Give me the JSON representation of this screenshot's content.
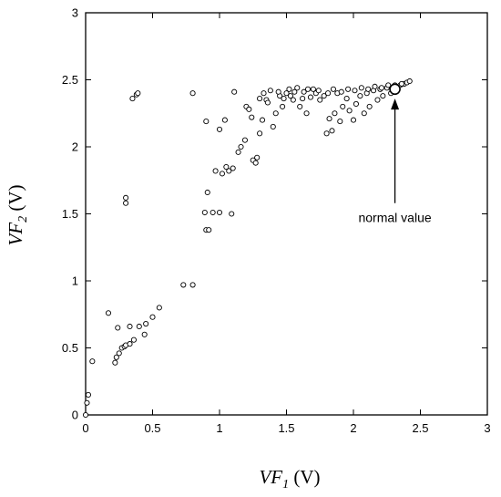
{
  "chart_data": {
    "type": "scatter",
    "title": "",
    "xlabel": {
      "main": "VF",
      "sub": "1",
      "unit": " (V)"
    },
    "ylabel": {
      "main": "VF",
      "sub": "2",
      "unit": " (V)"
    },
    "xlim": [
      0,
      3
    ],
    "ylim": [
      0,
      3
    ],
    "xticks": [
      0,
      0.5,
      1,
      1.5,
      2,
      2.5,
      3
    ],
    "yticks": [
      0,
      0.5,
      1,
      1.5,
      2,
      2.5,
      3
    ],
    "xtick_labels": [
      "0",
      "0.5",
      "1",
      "1.5",
      "2",
      "2.5",
      "3"
    ],
    "ytick_labels": [
      "0",
      "0.5",
      "1",
      "1.5",
      "2",
      "2.5",
      "3"
    ],
    "grid": false,
    "legend": "none",
    "marker": "open-circle",
    "series": [
      {
        "values": [
          [
            0.0,
            0.0
          ],
          [
            0.01,
            0.09
          ],
          [
            0.02,
            0.15
          ],
          [
            0.05,
            0.4
          ],
          [
            0.17,
            0.76
          ],
          [
            0.22,
            0.39
          ],
          [
            0.23,
            0.43
          ],
          [
            0.24,
            0.65
          ],
          [
            0.25,
            0.46
          ],
          [
            0.27,
            0.5
          ],
          [
            0.29,
            0.51
          ],
          [
            0.3,
            0.52
          ],
          [
            0.33,
            0.53
          ],
          [
            0.33,
            0.66
          ],
          [
            0.36,
            0.56
          ],
          [
            0.4,
            0.66
          ],
          [
            0.44,
            0.6
          ],
          [
            0.45,
            0.68
          ],
          [
            0.5,
            0.73
          ],
          [
            0.55,
            0.8
          ],
          [
            0.73,
            0.97
          ],
          [
            0.8,
            0.97
          ],
          [
            0.3,
            1.58
          ],
          [
            0.3,
            1.62
          ],
          [
            0.35,
            2.36
          ],
          [
            0.38,
            2.39
          ],
          [
            0.39,
            2.4
          ],
          [
            0.8,
            2.4
          ],
          [
            0.9,
            1.38
          ],
          [
            0.92,
            1.38
          ],
          [
            0.89,
            1.51
          ],
          [
            0.95,
            1.51
          ],
          [
            1.0,
            1.51
          ],
          [
            1.09,
            1.5
          ],
          [
            0.91,
            1.66
          ],
          [
            0.9,
            2.19
          ],
          [
            0.97,
            1.82
          ],
          [
            1.0,
            2.13
          ],
          [
            1.02,
            1.8
          ],
          [
            1.05,
            1.85
          ],
          [
            1.07,
            1.82
          ],
          [
            1.1,
            1.84
          ],
          [
            1.04,
            2.2
          ],
          [
            1.11,
            2.41
          ],
          [
            1.14,
            1.96
          ],
          [
            1.16,
            2.0
          ],
          [
            1.19,
            2.05
          ],
          [
            1.2,
            2.3
          ],
          [
            1.22,
            2.28
          ],
          [
            1.24,
            2.22
          ],
          [
            1.25,
            1.9
          ],
          [
            1.27,
            1.88
          ],
          [
            1.28,
            1.92
          ],
          [
            1.3,
            2.1
          ],
          [
            1.32,
            2.2
          ],
          [
            1.35,
            2.35
          ],
          [
            1.38,
            2.42
          ],
          [
            1.4,
            2.15
          ],
          [
            1.42,
            2.25
          ],
          [
            1.45,
            2.38
          ],
          [
            1.47,
            2.3
          ],
          [
            1.5,
            2.4
          ],
          [
            1.52,
            2.43
          ],
          [
            1.55,
            2.35
          ],
          [
            1.58,
            2.44
          ],
          [
            1.6,
            2.3
          ],
          [
            1.63,
            2.41
          ],
          [
            1.65,
            2.25
          ],
          [
            1.68,
            2.37
          ],
          [
            1.7,
            2.43
          ],
          [
            1.72,
            2.4
          ],
          [
            1.75,
            2.35
          ],
          [
            1.78,
            2.38
          ],
          [
            1.8,
            2.1
          ],
          [
            1.82,
            2.21
          ],
          [
            1.84,
            2.12
          ],
          [
            1.86,
            2.25
          ],
          [
            1.88,
            2.4
          ],
          [
            1.9,
            2.19
          ],
          [
            1.92,
            2.3
          ],
          [
            1.95,
            2.36
          ],
          [
            1.97,
            2.27
          ],
          [
            2.0,
            2.2
          ],
          [
            2.02,
            2.32
          ],
          [
            2.05,
            2.38
          ],
          [
            2.08,
            2.25
          ],
          [
            2.1,
            2.4
          ],
          [
            2.12,
            2.3
          ],
          [
            2.15,
            2.42
          ],
          [
            2.18,
            2.35
          ],
          [
            2.2,
            2.43
          ],
          [
            2.22,
            2.38
          ],
          [
            2.25,
            2.44
          ],
          [
            2.28,
            2.4
          ],
          [
            2.3,
            2.45
          ],
          [
            2.32,
            2.42
          ],
          [
            2.35,
            2.46
          ],
          [
            2.38,
            2.47
          ],
          [
            2.4,
            2.48
          ],
          [
            2.42,
            2.49
          ],
          [
            1.3,
            2.36
          ],
          [
            1.33,
            2.4
          ],
          [
            1.36,
            2.33
          ],
          [
            1.44,
            2.41
          ],
          [
            1.48,
            2.36
          ],
          [
            1.53,
            2.38
          ],
          [
            1.56,
            2.41
          ],
          [
            1.62,
            2.36
          ],
          [
            1.66,
            2.43
          ],
          [
            1.74,
            2.42
          ],
          [
            1.81,
            2.4
          ],
          [
            1.85,
            2.43
          ],
          [
            1.91,
            2.41
          ],
          [
            1.96,
            2.43
          ],
          [
            2.01,
            2.42
          ],
          [
            2.06,
            2.44
          ],
          [
            2.11,
            2.43
          ],
          [
            2.16,
            2.45
          ],
          [
            2.21,
            2.44
          ],
          [
            2.26,
            2.46
          ],
          [
            2.31,
            2.46
          ],
          [
            2.36,
            2.47
          ]
        ]
      }
    ],
    "highlight_point": {
      "x": 2.31,
      "y": 2.43
    },
    "annotation": {
      "text": "normal value",
      "arrow_tip": {
        "x": 2.31,
        "y": 2.36
      },
      "arrow_tail": {
        "x": 2.31,
        "y": 1.58
      },
      "text_anchor": {
        "x": 2.31,
        "y": 1.44
      }
    }
  }
}
